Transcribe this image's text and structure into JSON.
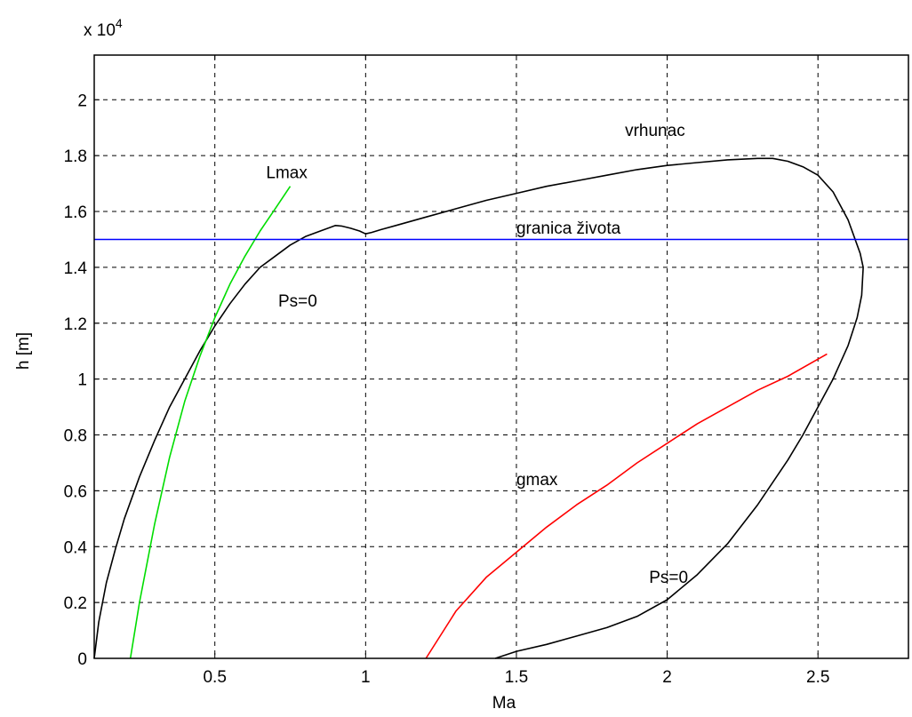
{
  "chart_data": {
    "type": "line",
    "xlabel": "Ma",
    "ylabel": "h [m]",
    "y_multiplier_label": "x 10",
    "y_multiplier_exp": "4",
    "xlim": [
      0.1,
      2.8
    ],
    "ylim": [
      0,
      2.16
    ],
    "grid": true,
    "x_ticks": [
      0.5,
      1,
      1.5,
      2,
      2.5
    ],
    "x_tick_labels": [
      "0.5",
      "1",
      "1.5",
      "2",
      "2.5"
    ],
    "y_ticks": [
      0,
      0.2,
      0.4,
      0.6,
      0.8,
      1,
      1.2,
      1.4,
      1.6,
      1.8,
      2
    ],
    "y_tick_labels": [
      "0",
      "0.2",
      "0.4",
      "0.6",
      "0.8",
      "1",
      "1.2",
      "1.4",
      "1.6",
      "1.8",
      "2"
    ],
    "series": [
      {
        "color": "#000000",
        "x": [
          0.1,
          0.115,
          0.14,
          0.17,
          0.2,
          0.25,
          0.3,
          0.35,
          0.4,
          0.45,
          0.5,
          0.55,
          0.6,
          0.65,
          0.7,
          0.75,
          0.8,
          0.85,
          0.9,
          0.92,
          0.95,
          0.98,
          1.0,
          1.02,
          1.05,
          1.1,
          1.2,
          1.3,
          1.4,
          1.5,
          1.6,
          1.7,
          1.8,
          1.9,
          2.0,
          2.1,
          2.2,
          2.3,
          2.35,
          2.4,
          2.45,
          2.5,
          2.55,
          2.6,
          2.64,
          2.65,
          2.645,
          2.63,
          2.6,
          2.55,
          2.5,
          2.45,
          2.4,
          2.3,
          2.2,
          2.1,
          2.0,
          1.9,
          1.8,
          1.7,
          1.6,
          1.5,
          1.43
        ],
        "y": [
          0,
          0.13,
          0.27,
          0.39,
          0.5,
          0.65,
          0.78,
          0.9,
          1.0,
          1.1,
          1.19,
          1.27,
          1.34,
          1.4,
          1.44,
          1.48,
          1.51,
          1.53,
          1.55,
          1.548,
          1.54,
          1.53,
          1.52,
          1.525,
          1.535,
          1.55,
          1.58,
          1.61,
          1.64,
          1.665,
          1.69,
          1.71,
          1.73,
          1.75,
          1.765,
          1.775,
          1.785,
          1.79,
          1.79,
          1.78,
          1.76,
          1.73,
          1.67,
          1.57,
          1.45,
          1.4,
          1.3,
          1.22,
          1.12,
          1.0,
          0.9,
          0.8,
          0.71,
          0.55,
          0.41,
          0.3,
          0.21,
          0.15,
          0.11,
          0.08,
          0.05,
          0.025,
          0
        ]
      },
      {
        "color": "#00dd00",
        "x": [
          0.22,
          0.25,
          0.3,
          0.35,
          0.4,
          0.45,
          0.5,
          0.55,
          0.6,
          0.65,
          0.7,
          0.75
        ],
        "y": [
          0,
          0.2,
          0.48,
          0.72,
          0.92,
          1.08,
          1.22,
          1.34,
          1.44,
          1.53,
          1.61,
          1.69
        ]
      },
      {
        "color": "#ff0000",
        "x": [
          1.2,
          1.3,
          1.4,
          1.5,
          1.6,
          1.7,
          1.8,
          1.9,
          2.0,
          2.1,
          2.2,
          2.3,
          2.4,
          2.53
        ],
        "y": [
          0,
          0.17,
          0.29,
          0.38,
          0.47,
          0.55,
          0.62,
          0.7,
          0.77,
          0.84,
          0.9,
          0.96,
          1.01,
          1.09
        ]
      },
      {
        "color": "#0000ff",
        "x": [
          0.1,
          2.8
        ],
        "y": [
          1.5,
          1.5
        ]
      }
    ],
    "annotations": [
      {
        "text": "vrhunac",
        "x": 1.86,
        "y": 1.87
      },
      {
        "text": "Lmax",
        "x": 0.67,
        "y": 1.72
      },
      {
        "text": "granica života",
        "x": 1.5,
        "y": 1.52
      },
      {
        "text": "Ps=0",
        "x": 0.71,
        "y": 1.26
      },
      {
        "text": "gmax",
        "x": 1.5,
        "y": 0.62
      },
      {
        "text": "Ps=0",
        "x": 1.94,
        "y": 0.27
      }
    ]
  }
}
